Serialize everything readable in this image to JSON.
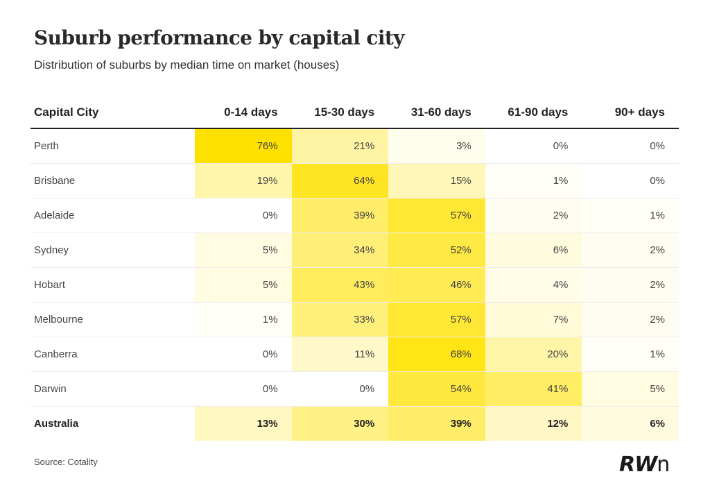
{
  "title": "Suburb performance by capital city",
  "subtitle": "Distribution of suburbs by median time on market (houses)",
  "source": "Source: Cotality",
  "logo": {
    "bold": "RW",
    "thin": "n"
  },
  "colors": {
    "heat_max": "#ffe100",
    "heat_min": "#ffffff"
  },
  "chart_data": {
    "type": "heatmap",
    "title": "Suburb performance by capital city",
    "subtitle": "Distribution of suburbs by median time on market (houses)",
    "row_header": "Capital City",
    "columns": [
      "0-14 days",
      "15-30 days",
      "31-60 days",
      "61-90 days",
      "90+ days"
    ],
    "rows": [
      {
        "label": "Perth",
        "values": [
          76,
          21,
          3,
          0,
          0
        ]
      },
      {
        "label": "Brisbane",
        "values": [
          19,
          64,
          15,
          1,
          0
        ]
      },
      {
        "label": "Adelaide",
        "values": [
          0,
          39,
          57,
          2,
          1
        ]
      },
      {
        "label": "Sydney",
        "values": [
          5,
          34,
          52,
          6,
          2
        ]
      },
      {
        "label": "Hobart",
        "values": [
          5,
          43,
          46,
          4,
          2
        ]
      },
      {
        "label": "Melbourne",
        "values": [
          1,
          33,
          57,
          7,
          2
        ]
      },
      {
        "label": "Canberra",
        "values": [
          0,
          11,
          68,
          20,
          1
        ]
      },
      {
        "label": "Darwin",
        "values": [
          0,
          0,
          54,
          41,
          5
        ]
      },
      {
        "label": "Australia",
        "values": [
          13,
          30,
          39,
          12,
          6
        ],
        "total": true
      }
    ],
    "unit": "%"
  }
}
